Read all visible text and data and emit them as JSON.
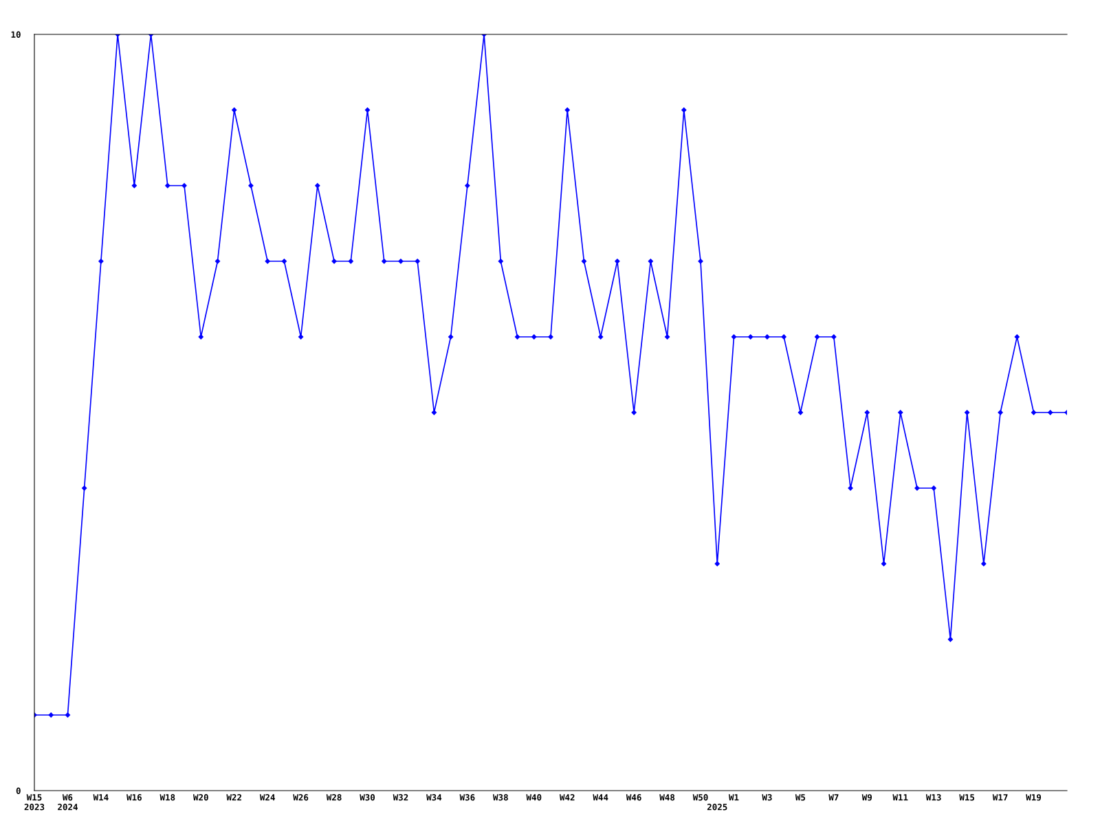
{
  "chart_data": {
    "type": "line",
    "categories": [
      "W15\n2023",
      null,
      "W6\n2024",
      null,
      "W14",
      null,
      "W16",
      null,
      "W18",
      null,
      "W20",
      null,
      "W22",
      null,
      "W24",
      null,
      "W26",
      null,
      "W28",
      null,
      "W30",
      null,
      "W32",
      null,
      "W34",
      null,
      "W36",
      null,
      "W38",
      null,
      "W40",
      null,
      "W42",
      null,
      "W44",
      null,
      "W46",
      null,
      "W48",
      null,
      "W50",
      "\n2025",
      "W1",
      null,
      "W3",
      null,
      "W5",
      null,
      "W7",
      null,
      "W9",
      null,
      "W11",
      null,
      "W13",
      null,
      "W15",
      null,
      "W17",
      null,
      "W19",
      null,
      null
    ],
    "series": [
      {
        "color": "#0000ff",
        "values": [
          1,
          1,
          1,
          4,
          7,
          10,
          8,
          10,
          8,
          8,
          6,
          7,
          9,
          8,
          7,
          7,
          6,
          8,
          7,
          7,
          9,
          7,
          7,
          7,
          5,
          6,
          8,
          10,
          7,
          6,
          6,
          6,
          9,
          7,
          6,
          7,
          5,
          7,
          6,
          9,
          7,
          3,
          6,
          6,
          6,
          6,
          5,
          6,
          6,
          4,
          5,
          3,
          5,
          4,
          4,
          2,
          5,
          3,
          5,
          6,
          5,
          5,
          5
        ]
      }
    ],
    "ylim": [
      0,
      10
    ],
    "yticks": [
      0,
      10
    ],
    "grid": false,
    "legend": false,
    "marker": "diamond",
    "line_style": "solid"
  }
}
